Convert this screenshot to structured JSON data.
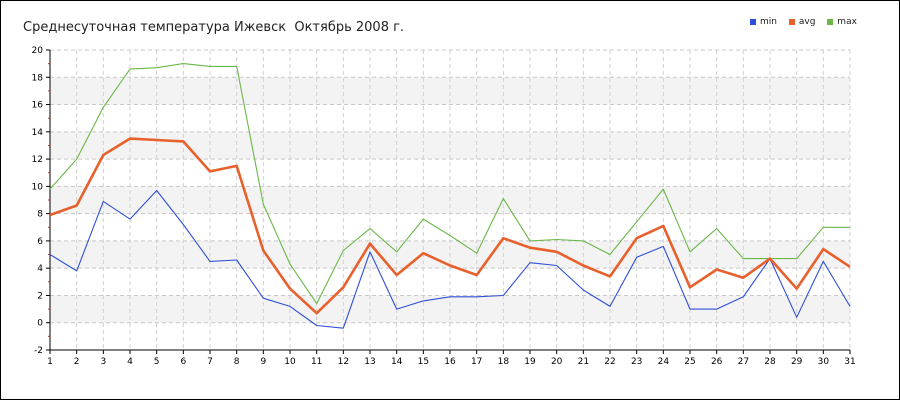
{
  "chart_data": {
    "type": "line",
    "title": "Среднесуточная температура Ижевск  Октябрь 2008 г.",
    "xlabel": "",
    "ylabel": "",
    "x": [
      1,
      2,
      3,
      4,
      5,
      6,
      7,
      8,
      9,
      10,
      11,
      12,
      13,
      14,
      15,
      16,
      17,
      18,
      19,
      20,
      21,
      22,
      23,
      24,
      25,
      26,
      27,
      28,
      29,
      30,
      31
    ],
    "ylim": [
      -2,
      20
    ],
    "yticks": [
      -2,
      0,
      2,
      4,
      6,
      8,
      10,
      12,
      14,
      16,
      18,
      20
    ],
    "grid": true,
    "legend_position": "top-right",
    "series": [
      {
        "name": "min",
        "color": "#2f4fd8",
        "values": [
          5.0,
          3.8,
          8.9,
          7.6,
          9.7,
          7.2,
          4.5,
          4.6,
          1.8,
          1.2,
          -0.2,
          -0.4,
          5.2,
          1.0,
          1.6,
          1.9,
          1.9,
          2.0,
          4.4,
          4.2,
          2.4,
          1.2,
          4.8,
          5.6,
          1.0,
          1.0,
          1.9,
          4.7,
          0.4,
          4.5,
          1.2
        ]
      },
      {
        "name": "avg",
        "color": "#e8602c",
        "values": [
          7.9,
          8.6,
          12.3,
          13.5,
          13.4,
          13.3,
          11.1,
          11.5,
          5.3,
          2.5,
          0.7,
          2.6,
          5.8,
          3.5,
          5.1,
          4.2,
          3.5,
          6.2,
          5.5,
          5.2,
          4.2,
          3.4,
          6.2,
          7.1,
          2.6,
          3.9,
          3.3,
          4.7,
          2.5,
          5.4,
          4.1
        ]
      },
      {
        "name": "max",
        "color": "#6bb84a",
        "values": [
          9.8,
          12.0,
          15.8,
          18.6,
          18.7,
          19.0,
          18.8,
          18.8,
          8.7,
          4.3,
          1.4,
          5.3,
          6.9,
          5.2,
          7.6,
          6.4,
          5.1,
          9.1,
          6.0,
          6.1,
          6.0,
          5.0,
          7.4,
          9.8,
          5.2,
          6.9,
          4.7,
          4.7,
          4.7,
          7.0,
          7.0
        ]
      }
    ]
  }
}
